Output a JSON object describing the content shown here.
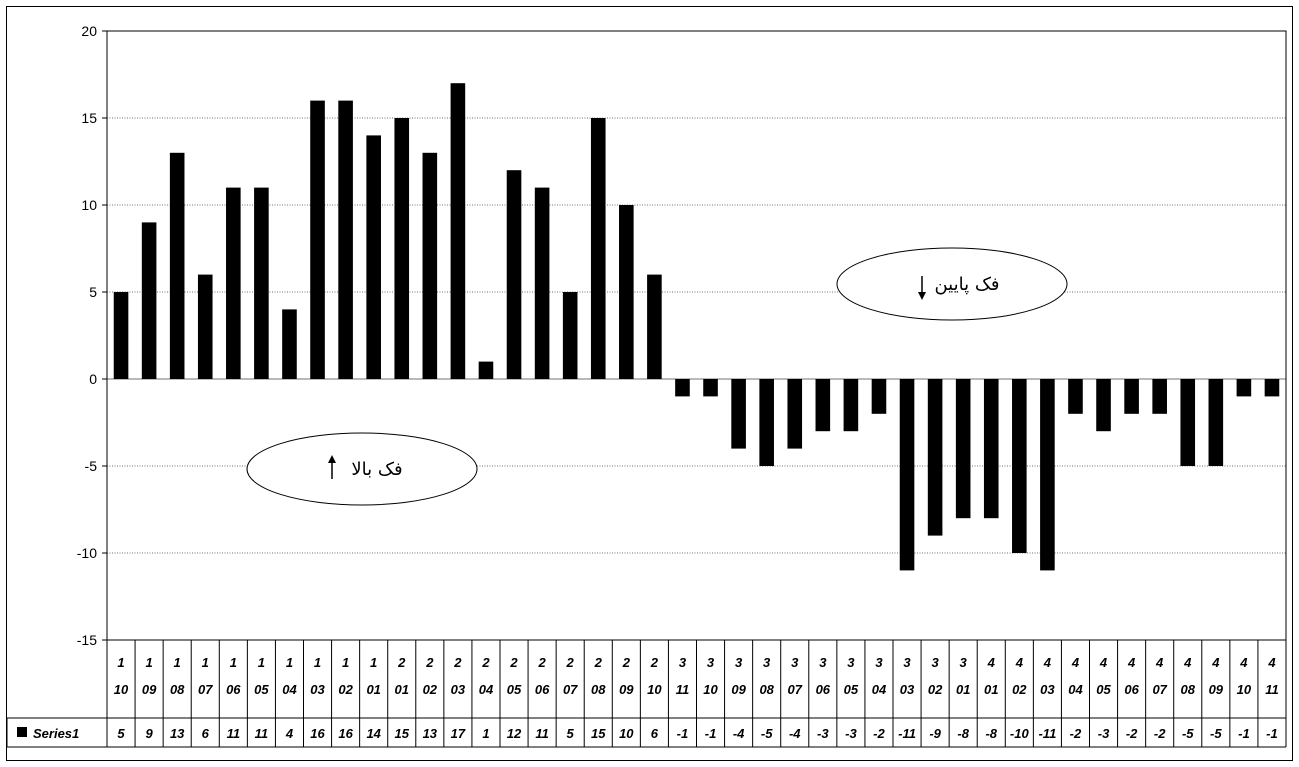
{
  "chart_data": {
    "type": "bar",
    "ylim": [
      -15,
      20
    ],
    "yticks": [
      -15,
      -10,
      -5,
      0,
      5,
      10,
      15,
      20
    ],
    "grid": true,
    "categories": [
      [
        "1",
        "10"
      ],
      [
        "1",
        "09"
      ],
      [
        "1",
        "08"
      ],
      [
        "1",
        "07"
      ],
      [
        "1",
        "06"
      ],
      [
        "1",
        "05"
      ],
      [
        "1",
        "04"
      ],
      [
        "1",
        "03"
      ],
      [
        "1",
        "02"
      ],
      [
        "1",
        "01"
      ],
      [
        "2",
        "01"
      ],
      [
        "2",
        "02"
      ],
      [
        "2",
        "03"
      ],
      [
        "2",
        "04"
      ],
      [
        "2",
        "05"
      ],
      [
        "2",
        "06"
      ],
      [
        "2",
        "07"
      ],
      [
        "2",
        "08"
      ],
      [
        "2",
        "09"
      ],
      [
        "2",
        "10"
      ],
      [
        "3",
        "11"
      ],
      [
        "3",
        "10"
      ],
      [
        "3",
        "09"
      ],
      [
        "3",
        "08"
      ],
      [
        "3",
        "07"
      ],
      [
        "3",
        "06"
      ],
      [
        "3",
        "05"
      ],
      [
        "3",
        "04"
      ],
      [
        "3",
        "03"
      ],
      [
        "3",
        "02"
      ],
      [
        "3",
        "01"
      ],
      [
        "4",
        "01"
      ],
      [
        "4",
        "02"
      ],
      [
        "4",
        "03"
      ],
      [
        "4",
        "04"
      ],
      [
        "4",
        "05"
      ],
      [
        "4",
        "06"
      ],
      [
        "4",
        "07"
      ],
      [
        "4",
        "08"
      ],
      [
        "4",
        "09"
      ],
      [
        "4",
        "10"
      ],
      [
        "4",
        "11"
      ]
    ],
    "series": [
      {
        "name": "Series1",
        "color": "#000000",
        "values": [
          5,
          9,
          13,
          6,
          11,
          11,
          4,
          16,
          16,
          14,
          15,
          13,
          17,
          1,
          12,
          11,
          5,
          15,
          10,
          6,
          -1,
          -1,
          -4,
          -5,
          -4,
          -3,
          -3,
          -2,
          -11,
          -9,
          -8,
          -8,
          -10,
          -11,
          -2,
          -3,
          -2,
          -2,
          -5,
          -5,
          -1,
          -1
        ]
      }
    ],
    "annotations": [
      {
        "text": "فک پایین",
        "arrow": "down"
      },
      {
        "text": "فک بالا",
        "arrow": "up"
      }
    ]
  }
}
